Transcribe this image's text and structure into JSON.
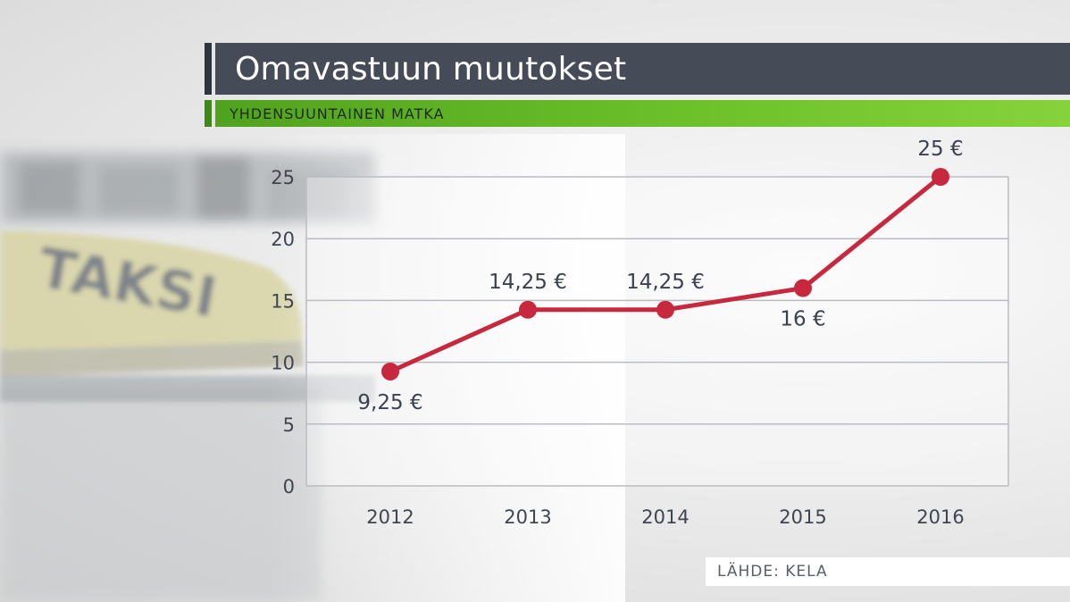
{
  "chart_data": {
    "type": "line",
    "title": "Omavastuun muutokset",
    "subtitle": "YHDENSUUNTAINEN MATKA",
    "categories": [
      "2012",
      "2013",
      "2014",
      "2015",
      "2016"
    ],
    "series": [
      {
        "values": [
          9.25,
          14.25,
          14.25,
          16,
          25
        ],
        "labels": [
          "9,25 €",
          "14,25 €",
          "14,25 €",
          "16 €",
          "25 €"
        ],
        "label_side": [
          "below",
          "above",
          "above",
          "below",
          "above"
        ],
        "color": "#c8283e"
      }
    ],
    "ylim": [
      0,
      25
    ],
    "yticks": [
      "0",
      "5",
      "10",
      "15",
      "20",
      "25"
    ],
    "grid": true,
    "xlabel": "",
    "ylabel": ""
  },
  "source": "LÄHDE: KELA",
  "colors": {
    "title_bar": "#454c57",
    "subtitle_bar": "#6cc02a",
    "line": "#c8283e",
    "grid": "#b9bcc1"
  }
}
